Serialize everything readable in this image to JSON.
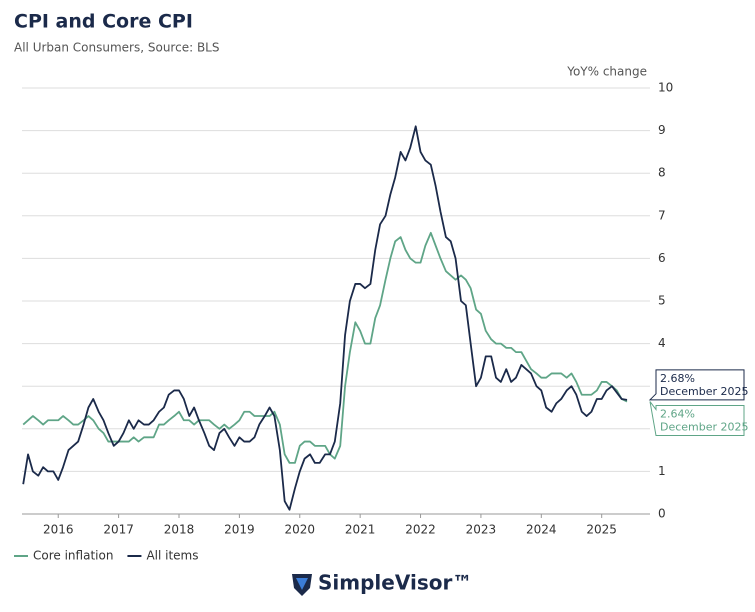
{
  "chart_data": {
    "type": "line",
    "title": "CPI and Core CPI",
    "subtitle": "All Urban Consumers, Source: BLS",
    "y_axis_label": "YoY% change",
    "x": [
      2015.92,
      2016,
      2016.08,
      2016.17,
      2016.25,
      2016.33,
      2016.42,
      2016.5,
      2016.58,
      2016.67,
      2016.75,
      2016.83,
      2016.92,
      2017,
      2017.08,
      2017.17,
      2017.25,
      2017.33,
      2017.42,
      2017.5,
      2017.58,
      2017.67,
      2017.75,
      2017.83,
      2017.92,
      2018,
      2018.08,
      2018.17,
      2018.25,
      2018.33,
      2018.42,
      2018.5,
      2018.58,
      2018.67,
      2018.75,
      2018.83,
      2018.92,
      2019,
      2019.08,
      2019.17,
      2019.25,
      2019.33,
      2019.42,
      2019.5,
      2019.58,
      2019.67,
      2019.75,
      2019.83,
      2019.92,
      2020,
      2020.08,
      2020.17,
      2020.25,
      2020.33,
      2020.42,
      2020.5,
      2020.58,
      2020.67,
      2020.75,
      2020.83,
      2020.92,
      2021,
      2021.08,
      2021.17,
      2021.25,
      2021.33,
      2021.42,
      2021.5,
      2021.58,
      2021.67,
      2021.75,
      2021.83,
      2021.92,
      2022,
      2022.08,
      2022.17,
      2022.25,
      2022.33,
      2022.42,
      2022.5,
      2022.58,
      2022.67,
      2022.75,
      2022.83,
      2022.92,
      2023,
      2023.08,
      2023.17,
      2023.25,
      2023.33,
      2023.42,
      2023.5,
      2023.58,
      2023.67,
      2023.75,
      2023.83,
      2023.92,
      2024,
      2024.08,
      2024.17,
      2024.25,
      2024.33,
      2024.42,
      2024.5,
      2024.58,
      2024.67,
      2024.75,
      2024.83,
      2024.92,
      2025,
      2025.08,
      2025.17,
      2025.25,
      2025.33,
      2025.42,
      2025.5,
      2025.58,
      2025.67,
      2025.75,
      2025.83,
      2025.92
    ],
    "series": [
      {
        "name": "Core inflation",
        "color": "#5fa587",
        "values": [
          2.1,
          2.2,
          2.3,
          2.2,
          2.1,
          2.2,
          2.2,
          2.2,
          2.3,
          2.2,
          2.1,
          2.1,
          2.2,
          2.3,
          2.2,
          2.0,
          1.9,
          1.7,
          1.7,
          1.7,
          1.7,
          1.7,
          1.8,
          1.7,
          1.8,
          1.8,
          1.8,
          2.1,
          2.1,
          2.2,
          2.3,
          2.4,
          2.2,
          2.2,
          2.1,
          2.2,
          2.2,
          2.2,
          2.1,
          2.0,
          2.1,
          2.0,
          2.1,
          2.2,
          2.4,
          2.4,
          2.3,
          2.3,
          2.3,
          2.3,
          2.4,
          2.1,
          1.4,
          1.2,
          1.2,
          1.6,
          1.7,
          1.7,
          1.6,
          1.6,
          1.6,
          1.4,
          1.3,
          1.6,
          3.0,
          3.8,
          4.5,
          4.3,
          4.0,
          4.0,
          4.6,
          4.9,
          5.5,
          6.0,
          6.4,
          6.5,
          6.2,
          6.0,
          5.9,
          5.9,
          6.3,
          6.6,
          6.3,
          6.0,
          5.7,
          5.6,
          5.5,
          5.6,
          5.5,
          5.3,
          4.8,
          4.7,
          4.3,
          4.1,
          4.0,
          4.0,
          3.9,
          3.9,
          3.8,
          3.8,
          3.6,
          3.4,
          3.3,
          3.2,
          3.2,
          3.3,
          3.3,
          3.3,
          3.2,
          3.3,
          3.1,
          2.8,
          2.8,
          2.8,
          2.9,
          3.1,
          3.1,
          3.0,
          2.9,
          2.7,
          2.64
        ],
        "end_label": "2.64%",
        "end_date": "December 2025"
      },
      {
        "name": "All items",
        "color": "#1b2a4a",
        "values": [
          0.7,
          1.4,
          1.0,
          0.9,
          1.1,
          1.0,
          1.0,
          0.8,
          1.1,
          1.5,
          1.6,
          1.7,
          2.1,
          2.5,
          2.7,
          2.4,
          2.2,
          1.9,
          1.6,
          1.7,
          1.9,
          2.2,
          2.0,
          2.2,
          2.1,
          2.1,
          2.2,
          2.4,
          2.5,
          2.8,
          2.9,
          2.9,
          2.7,
          2.3,
          2.5,
          2.2,
          1.9,
          1.6,
          1.5,
          1.9,
          2.0,
          1.8,
          1.6,
          1.8,
          1.7,
          1.7,
          1.8,
          2.1,
          2.3,
          2.5,
          2.3,
          1.5,
          0.3,
          0.1,
          0.6,
          1.0,
          1.3,
          1.4,
          1.2,
          1.2,
          1.4,
          1.4,
          1.7,
          2.6,
          4.2,
          5.0,
          5.4,
          5.4,
          5.3,
          5.4,
          6.2,
          6.8,
          7.0,
          7.5,
          7.9,
          8.5,
          8.3,
          8.6,
          9.1,
          8.5,
          8.3,
          8.2,
          7.7,
          7.1,
          6.5,
          6.4,
          6.0,
          5.0,
          4.9,
          4.0,
          3.0,
          3.2,
          3.7,
          3.7,
          3.2,
          3.1,
          3.4,
          3.1,
          3.2,
          3.5,
          3.4,
          3.3,
          3.0,
          2.9,
          2.5,
          2.4,
          2.6,
          2.7,
          2.9,
          3.0,
          2.8,
          2.4,
          2.3,
          2.4,
          2.7,
          2.7,
          2.9,
          3.0,
          2.85,
          2.7,
          2.68
        ],
        "end_label": "2.68%",
        "end_date": "December 2025"
      }
    ],
    "xlim": [
      2015.9,
      2026.3
    ],
    "xticks": [
      {
        "value": 2016.5,
        "label": "2016"
      },
      {
        "value": 2017.5,
        "label": "2017"
      },
      {
        "value": 2018.5,
        "label": "2018"
      },
      {
        "value": 2019.5,
        "label": "2019"
      },
      {
        "value": 2020.5,
        "label": "2020"
      },
      {
        "value": 2021.5,
        "label": "2021"
      },
      {
        "value": 2022.5,
        "label": "2022"
      },
      {
        "value": 2023.5,
        "label": "2023"
      },
      {
        "value": 2024.5,
        "label": "2024"
      },
      {
        "value": 2025.5,
        "label": "2025"
      }
    ],
    "ylim": [
      0,
      10
    ],
    "yticks": [
      0,
      1,
      2,
      3,
      4,
      5,
      6,
      7,
      8,
      9,
      10
    ],
    "grid": true,
    "legend": "bottom-left"
  },
  "logo": "SimpleVisor™"
}
